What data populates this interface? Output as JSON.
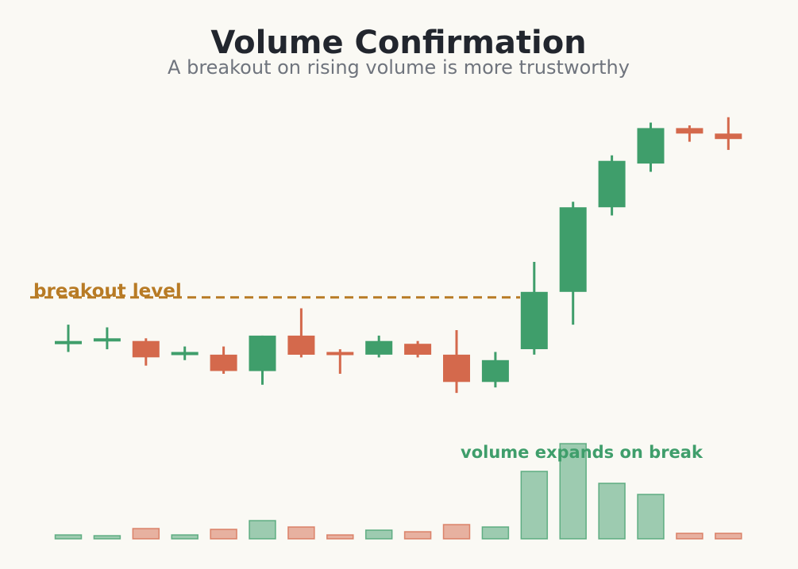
{
  "colors": {
    "up": "#3f9e6b",
    "down": "#d4694c",
    "breakout": "#b87b25",
    "title": "#22262e",
    "subtitle": "#6f747d",
    "background": "#faf9f4"
  },
  "chart_data": {
    "type": "candlestick",
    "title": "Volume Confirmation",
    "subtitle": "A breakout on rising volume is more trustworthy",
    "breakout_level": {
      "label": "breakout level",
      "price": 101.0
    },
    "volume_annotation": "volume expands on break",
    "grid": false,
    "candles": [
      {
        "open": 99.3,
        "high": 100.0,
        "low": 99.0,
        "close": 99.4,
        "volume": 0.5
      },
      {
        "open": 99.4,
        "high": 99.9,
        "low": 99.1,
        "close": 99.5,
        "volume": 0.4
      },
      {
        "open": 99.4,
        "high": 99.5,
        "low": 98.5,
        "close": 98.8,
        "volume": 1.3
      },
      {
        "open": 98.9,
        "high": 99.2,
        "low": 98.7,
        "close": 99.0,
        "volume": 0.5
      },
      {
        "open": 98.9,
        "high": 99.2,
        "low": 98.2,
        "close": 98.3,
        "volume": 1.2
      },
      {
        "open": 98.3,
        "high": 99.6,
        "low": 97.8,
        "close": 99.6,
        "volume": 2.3
      },
      {
        "open": 99.6,
        "high": 100.6,
        "low": 98.8,
        "close": 98.9,
        "volume": 1.5
      },
      {
        "open": 99.0,
        "high": 99.1,
        "low": 98.2,
        "close": 98.9,
        "volume": 0.5
      },
      {
        "open": 98.9,
        "high": 99.6,
        "low": 98.8,
        "close": 99.4,
        "volume": 1.1
      },
      {
        "open": 99.3,
        "high": 99.4,
        "low": 98.8,
        "close": 98.9,
        "volume": 0.9
      },
      {
        "open": 98.9,
        "high": 99.8,
        "low": 97.5,
        "close": 97.9,
        "volume": 1.8
      },
      {
        "open": 97.9,
        "high": 99.0,
        "low": 97.7,
        "close": 98.7,
        "volume": 1.5
      },
      {
        "open": 99.1,
        "high": 102.3,
        "low": 98.9,
        "close": 101.2,
        "volume": 8.5
      },
      {
        "open": 101.2,
        "high": 104.5,
        "low": 100.0,
        "close": 104.3,
        "volume": 12.0
      },
      {
        "open": 104.3,
        "high": 106.2,
        "low": 104.0,
        "close": 106.0,
        "volume": 7.0
      },
      {
        "open": 105.9,
        "high": 107.4,
        "low": 105.6,
        "close": 107.2,
        "volume": 5.6
      },
      {
        "open": 107.2,
        "high": 107.3,
        "low": 106.7,
        "close": 107.0,
        "volume": 0.7
      },
      {
        "open": 107.0,
        "high": 107.6,
        "low": 106.4,
        "close": 106.8,
        "volume": 0.7
      }
    ]
  }
}
